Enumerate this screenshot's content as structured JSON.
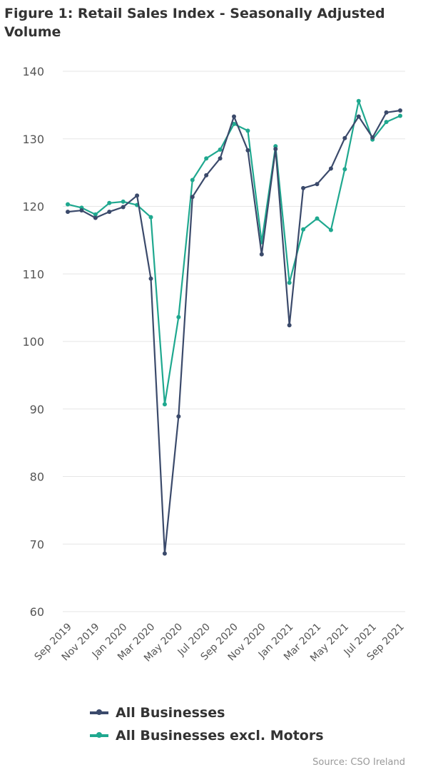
{
  "figure": {
    "title": "Figure 1: Retail Sales Index - Seasonally Adjusted Volume",
    "source": "Source: CSO Ireland"
  },
  "colors": {
    "all_businesses": "#3b4a6b",
    "excl_motors": "#1fa88f",
    "grid": "#e6e6e6",
    "axis_text": "#555555"
  },
  "chart_data": {
    "type": "line",
    "title": "Figure 1: Retail Sales Index - Seasonally Adjusted Volume",
    "xlabel": "",
    "ylabel": "",
    "ylim": [
      60,
      140
    ],
    "yticks": [
      60,
      70,
      80,
      90,
      100,
      110,
      120,
      130,
      140
    ],
    "grid": true,
    "legend_position": "bottom",
    "categories": [
      "Sep 2019",
      "Oct 2019",
      "Nov 2019",
      "Dec 2019",
      "Jan 2020",
      "Feb 2020",
      "Mar 2020",
      "Apr 2020",
      "May 2020",
      "Jun 2020",
      "Jul 2020",
      "Aug 2020",
      "Sep 2020",
      "Oct 2020",
      "Nov 2020",
      "Dec 2020",
      "Jan 2021",
      "Feb 2021",
      "Mar 2021",
      "Apr 2021",
      "May 2021",
      "Jun 2021",
      "Jul 2021",
      "Aug 2021",
      "Sep 2021"
    ],
    "xtick_labels": [
      "Sep 2019",
      "Nov 2019",
      "Jan 2020",
      "Mar 2020",
      "May 2020",
      "Jul 2020",
      "Sep 2020",
      "Nov 2020",
      "Jan 2021",
      "Mar 2021",
      "May 2021",
      "Jul 2021",
      "Sep 2021"
    ],
    "series": [
      {
        "name": "All Businesses",
        "values": [
          119.2,
          119.4,
          118.3,
          119.2,
          119.9,
          121.6,
          109.3,
          68.6,
          88.9,
          121.4,
          124.6,
          127.1,
          133.3,
          128.3,
          112.9,
          128.5,
          102.4,
          122.7,
          123.3,
          125.6,
          130.1,
          133.3,
          130.2,
          133.9,
          134.2
        ]
      },
      {
        "name": "All Businesses excl. Motors",
        "values": [
          120.3,
          119.8,
          118.8,
          120.5,
          120.7,
          120.2,
          118.4,
          90.7,
          103.6,
          123.9,
          127.1,
          128.4,
          132.2,
          131.2,
          114.7,
          128.9,
          108.7,
          116.6,
          118.2,
          116.5,
          125.5,
          135.6,
          129.9,
          132.5,
          133.4
        ]
      }
    ]
  }
}
